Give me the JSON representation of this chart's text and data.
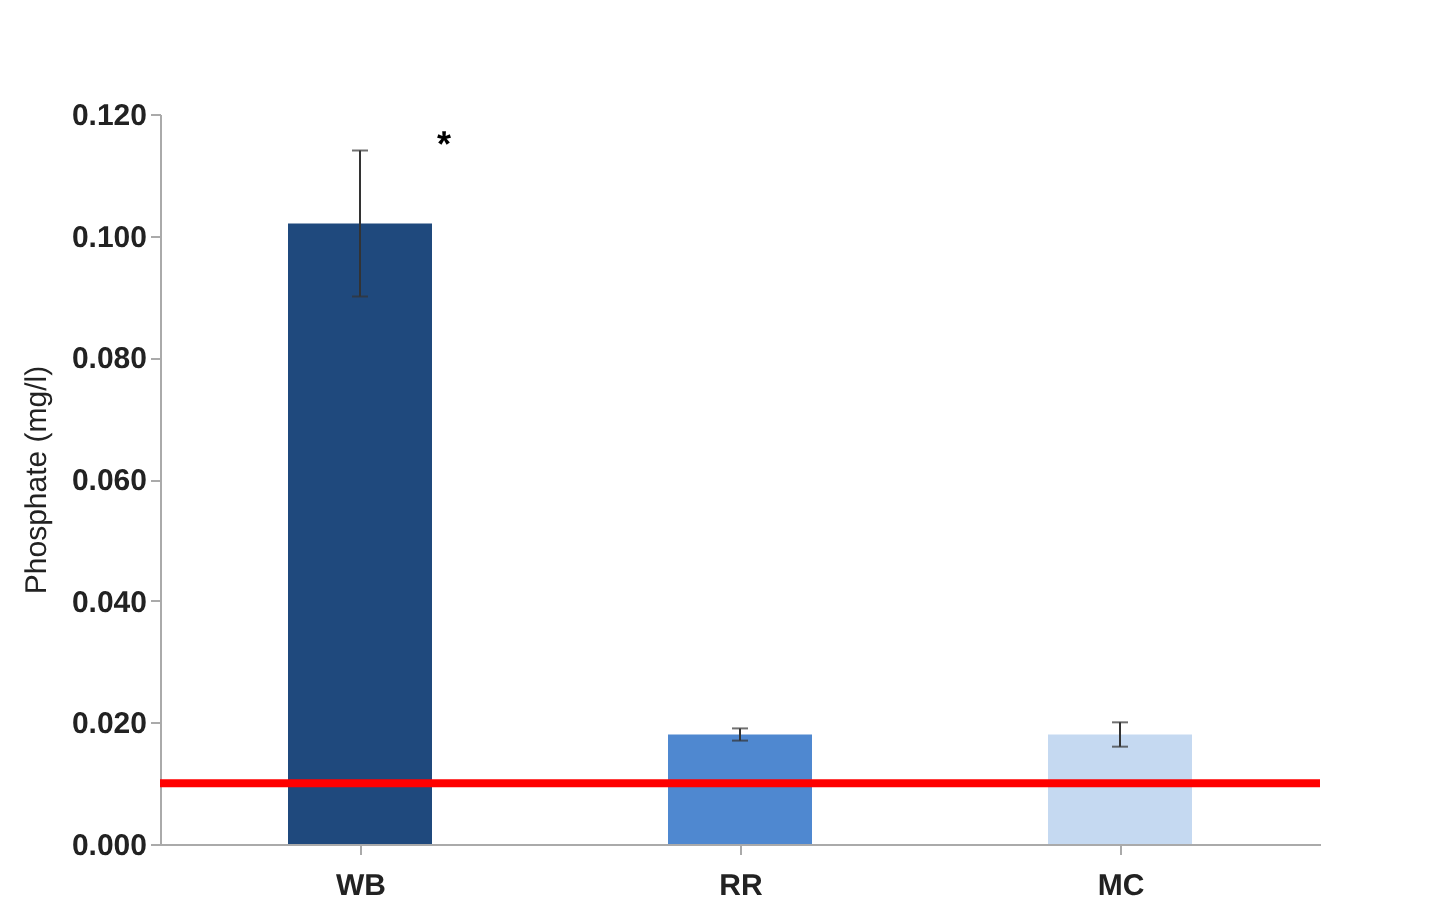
{
  "chart_data": {
    "type": "bar",
    "ylabel": "Phosphate (mg/l)",
    "categories": [
      "WB",
      "RR",
      "MC"
    ],
    "values": [
      0.102,
      0.018,
      0.018
    ],
    "colors": [
      "#1f497d",
      "#4f88d0",
      "#c5d9f1"
    ],
    "errors": [
      0.012,
      0.001,
      0.002
    ],
    "ylim": [
      0,
      0.12
    ],
    "yticks": [
      {
        "value": 0,
        "label": "0.000"
      },
      {
        "value": 0.02,
        "label": "0.020"
      },
      {
        "value": 0.04,
        "label": "0.040"
      },
      {
        "value": 0.06,
        "label": "0.060"
      },
      {
        "value": 0.08,
        "label": "0.080"
      },
      {
        "value": 0.1,
        "label": "0.100"
      },
      {
        "value": 0.12,
        "label": "0.120"
      }
    ],
    "ref_lines": [
      {
        "axis": "y",
        "value": 0.01,
        "label": null,
        "color": "#ff0000"
      }
    ],
    "annotations": [
      {
        "text": "*",
        "x": "WB",
        "y": 0.116
      }
    ],
    "grid": false
  }
}
